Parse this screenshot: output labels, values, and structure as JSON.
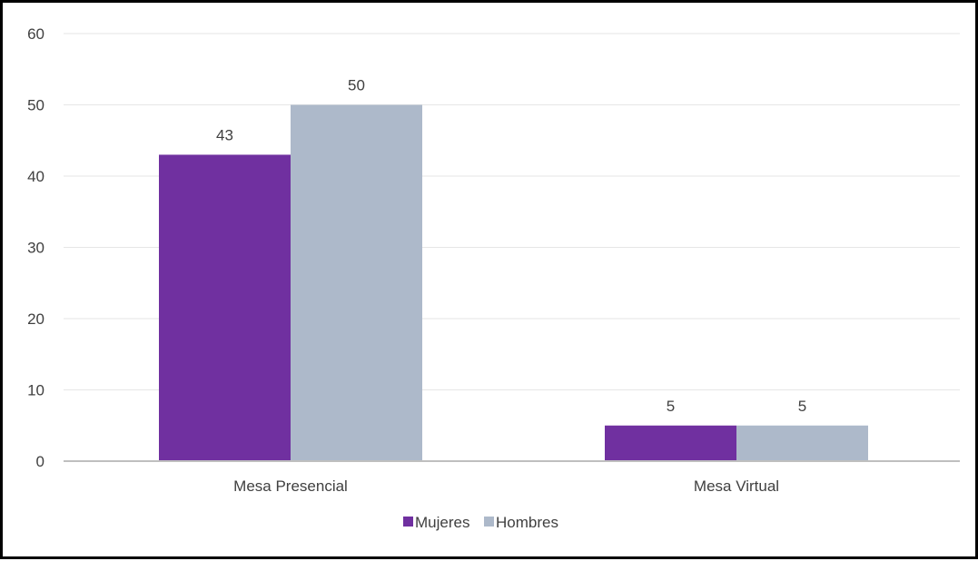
{
  "chart_data": {
    "type": "bar",
    "title": "",
    "xlabel": "",
    "ylabel": "",
    "categories": [
      "Mesa Presencial",
      "Mesa Virtual"
    ],
    "series": [
      {
        "name": "Mujeres",
        "values": [
          43,
          5
        ],
        "color": "#7030A0"
      },
      {
        "name": "Hombres",
        "values": [
          50,
          5
        ],
        "color": "#ADB9CA"
      }
    ],
    "ylim": [
      0,
      60
    ],
    "yticks": [
      0,
      10,
      20,
      30,
      40,
      50,
      60
    ],
    "grid": true,
    "legend": "bottom",
    "data_labels": true
  }
}
